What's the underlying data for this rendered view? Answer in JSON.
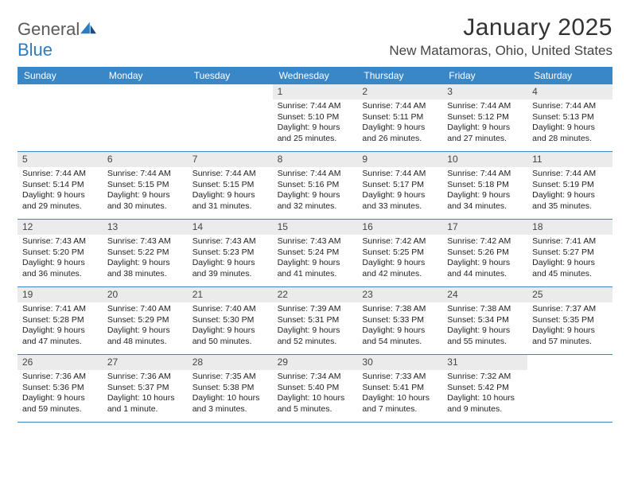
{
  "logo": {
    "word1": "General",
    "word2": "Blue"
  },
  "title": "January 2025",
  "location": "New Matamoras, Ohio, United States",
  "colors": {
    "header_bg": "#3a87c8",
    "daynum_bg": "#ebebeb",
    "rule": "#3a87c8",
    "text": "#222222",
    "logo_gray": "#5a5a5a",
    "logo_blue": "#2f7bbf"
  },
  "dow": [
    "Sunday",
    "Monday",
    "Tuesday",
    "Wednesday",
    "Thursday",
    "Friday",
    "Saturday"
  ],
  "weeks": [
    [
      {
        "n": "",
        "sr": "",
        "ss": "",
        "dl1": "",
        "dl2": ""
      },
      {
        "n": "",
        "sr": "",
        "ss": "",
        "dl1": "",
        "dl2": ""
      },
      {
        "n": "",
        "sr": "",
        "ss": "",
        "dl1": "",
        "dl2": ""
      },
      {
        "n": "1",
        "sr": "Sunrise: 7:44 AM",
        "ss": "Sunset: 5:10 PM",
        "dl1": "Daylight: 9 hours",
        "dl2": "and 25 minutes."
      },
      {
        "n": "2",
        "sr": "Sunrise: 7:44 AM",
        "ss": "Sunset: 5:11 PM",
        "dl1": "Daylight: 9 hours",
        "dl2": "and 26 minutes."
      },
      {
        "n": "3",
        "sr": "Sunrise: 7:44 AM",
        "ss": "Sunset: 5:12 PM",
        "dl1": "Daylight: 9 hours",
        "dl2": "and 27 minutes."
      },
      {
        "n": "4",
        "sr": "Sunrise: 7:44 AM",
        "ss": "Sunset: 5:13 PM",
        "dl1": "Daylight: 9 hours",
        "dl2": "and 28 minutes."
      }
    ],
    [
      {
        "n": "5",
        "sr": "Sunrise: 7:44 AM",
        "ss": "Sunset: 5:14 PM",
        "dl1": "Daylight: 9 hours",
        "dl2": "and 29 minutes."
      },
      {
        "n": "6",
        "sr": "Sunrise: 7:44 AM",
        "ss": "Sunset: 5:15 PM",
        "dl1": "Daylight: 9 hours",
        "dl2": "and 30 minutes."
      },
      {
        "n": "7",
        "sr": "Sunrise: 7:44 AM",
        "ss": "Sunset: 5:15 PM",
        "dl1": "Daylight: 9 hours",
        "dl2": "and 31 minutes."
      },
      {
        "n": "8",
        "sr": "Sunrise: 7:44 AM",
        "ss": "Sunset: 5:16 PM",
        "dl1": "Daylight: 9 hours",
        "dl2": "and 32 minutes."
      },
      {
        "n": "9",
        "sr": "Sunrise: 7:44 AM",
        "ss": "Sunset: 5:17 PM",
        "dl1": "Daylight: 9 hours",
        "dl2": "and 33 minutes."
      },
      {
        "n": "10",
        "sr": "Sunrise: 7:44 AM",
        "ss": "Sunset: 5:18 PM",
        "dl1": "Daylight: 9 hours",
        "dl2": "and 34 minutes."
      },
      {
        "n": "11",
        "sr": "Sunrise: 7:44 AM",
        "ss": "Sunset: 5:19 PM",
        "dl1": "Daylight: 9 hours",
        "dl2": "and 35 minutes."
      }
    ],
    [
      {
        "n": "12",
        "sr": "Sunrise: 7:43 AM",
        "ss": "Sunset: 5:20 PM",
        "dl1": "Daylight: 9 hours",
        "dl2": "and 36 minutes."
      },
      {
        "n": "13",
        "sr": "Sunrise: 7:43 AM",
        "ss": "Sunset: 5:22 PM",
        "dl1": "Daylight: 9 hours",
        "dl2": "and 38 minutes."
      },
      {
        "n": "14",
        "sr": "Sunrise: 7:43 AM",
        "ss": "Sunset: 5:23 PM",
        "dl1": "Daylight: 9 hours",
        "dl2": "and 39 minutes."
      },
      {
        "n": "15",
        "sr": "Sunrise: 7:43 AM",
        "ss": "Sunset: 5:24 PM",
        "dl1": "Daylight: 9 hours",
        "dl2": "and 41 minutes."
      },
      {
        "n": "16",
        "sr": "Sunrise: 7:42 AM",
        "ss": "Sunset: 5:25 PM",
        "dl1": "Daylight: 9 hours",
        "dl2": "and 42 minutes."
      },
      {
        "n": "17",
        "sr": "Sunrise: 7:42 AM",
        "ss": "Sunset: 5:26 PM",
        "dl1": "Daylight: 9 hours",
        "dl2": "and 44 minutes."
      },
      {
        "n": "18",
        "sr": "Sunrise: 7:41 AM",
        "ss": "Sunset: 5:27 PM",
        "dl1": "Daylight: 9 hours",
        "dl2": "and 45 minutes."
      }
    ],
    [
      {
        "n": "19",
        "sr": "Sunrise: 7:41 AM",
        "ss": "Sunset: 5:28 PM",
        "dl1": "Daylight: 9 hours",
        "dl2": "and 47 minutes."
      },
      {
        "n": "20",
        "sr": "Sunrise: 7:40 AM",
        "ss": "Sunset: 5:29 PM",
        "dl1": "Daylight: 9 hours",
        "dl2": "and 48 minutes."
      },
      {
        "n": "21",
        "sr": "Sunrise: 7:40 AM",
        "ss": "Sunset: 5:30 PM",
        "dl1": "Daylight: 9 hours",
        "dl2": "and 50 minutes."
      },
      {
        "n": "22",
        "sr": "Sunrise: 7:39 AM",
        "ss": "Sunset: 5:31 PM",
        "dl1": "Daylight: 9 hours",
        "dl2": "and 52 minutes."
      },
      {
        "n": "23",
        "sr": "Sunrise: 7:38 AM",
        "ss": "Sunset: 5:33 PM",
        "dl1": "Daylight: 9 hours",
        "dl2": "and 54 minutes."
      },
      {
        "n": "24",
        "sr": "Sunrise: 7:38 AM",
        "ss": "Sunset: 5:34 PM",
        "dl1": "Daylight: 9 hours",
        "dl2": "and 55 minutes."
      },
      {
        "n": "25",
        "sr": "Sunrise: 7:37 AM",
        "ss": "Sunset: 5:35 PM",
        "dl1": "Daylight: 9 hours",
        "dl2": "and 57 minutes."
      }
    ],
    [
      {
        "n": "26",
        "sr": "Sunrise: 7:36 AM",
        "ss": "Sunset: 5:36 PM",
        "dl1": "Daylight: 9 hours",
        "dl2": "and 59 minutes."
      },
      {
        "n": "27",
        "sr": "Sunrise: 7:36 AM",
        "ss": "Sunset: 5:37 PM",
        "dl1": "Daylight: 10 hours",
        "dl2": "and 1 minute."
      },
      {
        "n": "28",
        "sr": "Sunrise: 7:35 AM",
        "ss": "Sunset: 5:38 PM",
        "dl1": "Daylight: 10 hours",
        "dl2": "and 3 minutes."
      },
      {
        "n": "29",
        "sr": "Sunrise: 7:34 AM",
        "ss": "Sunset: 5:40 PM",
        "dl1": "Daylight: 10 hours",
        "dl2": "and 5 minutes."
      },
      {
        "n": "30",
        "sr": "Sunrise: 7:33 AM",
        "ss": "Sunset: 5:41 PM",
        "dl1": "Daylight: 10 hours",
        "dl2": "and 7 minutes."
      },
      {
        "n": "31",
        "sr": "Sunrise: 7:32 AM",
        "ss": "Sunset: 5:42 PM",
        "dl1": "Daylight: 10 hours",
        "dl2": "and 9 minutes."
      },
      {
        "n": "",
        "sr": "",
        "ss": "",
        "dl1": "",
        "dl2": ""
      }
    ]
  ]
}
